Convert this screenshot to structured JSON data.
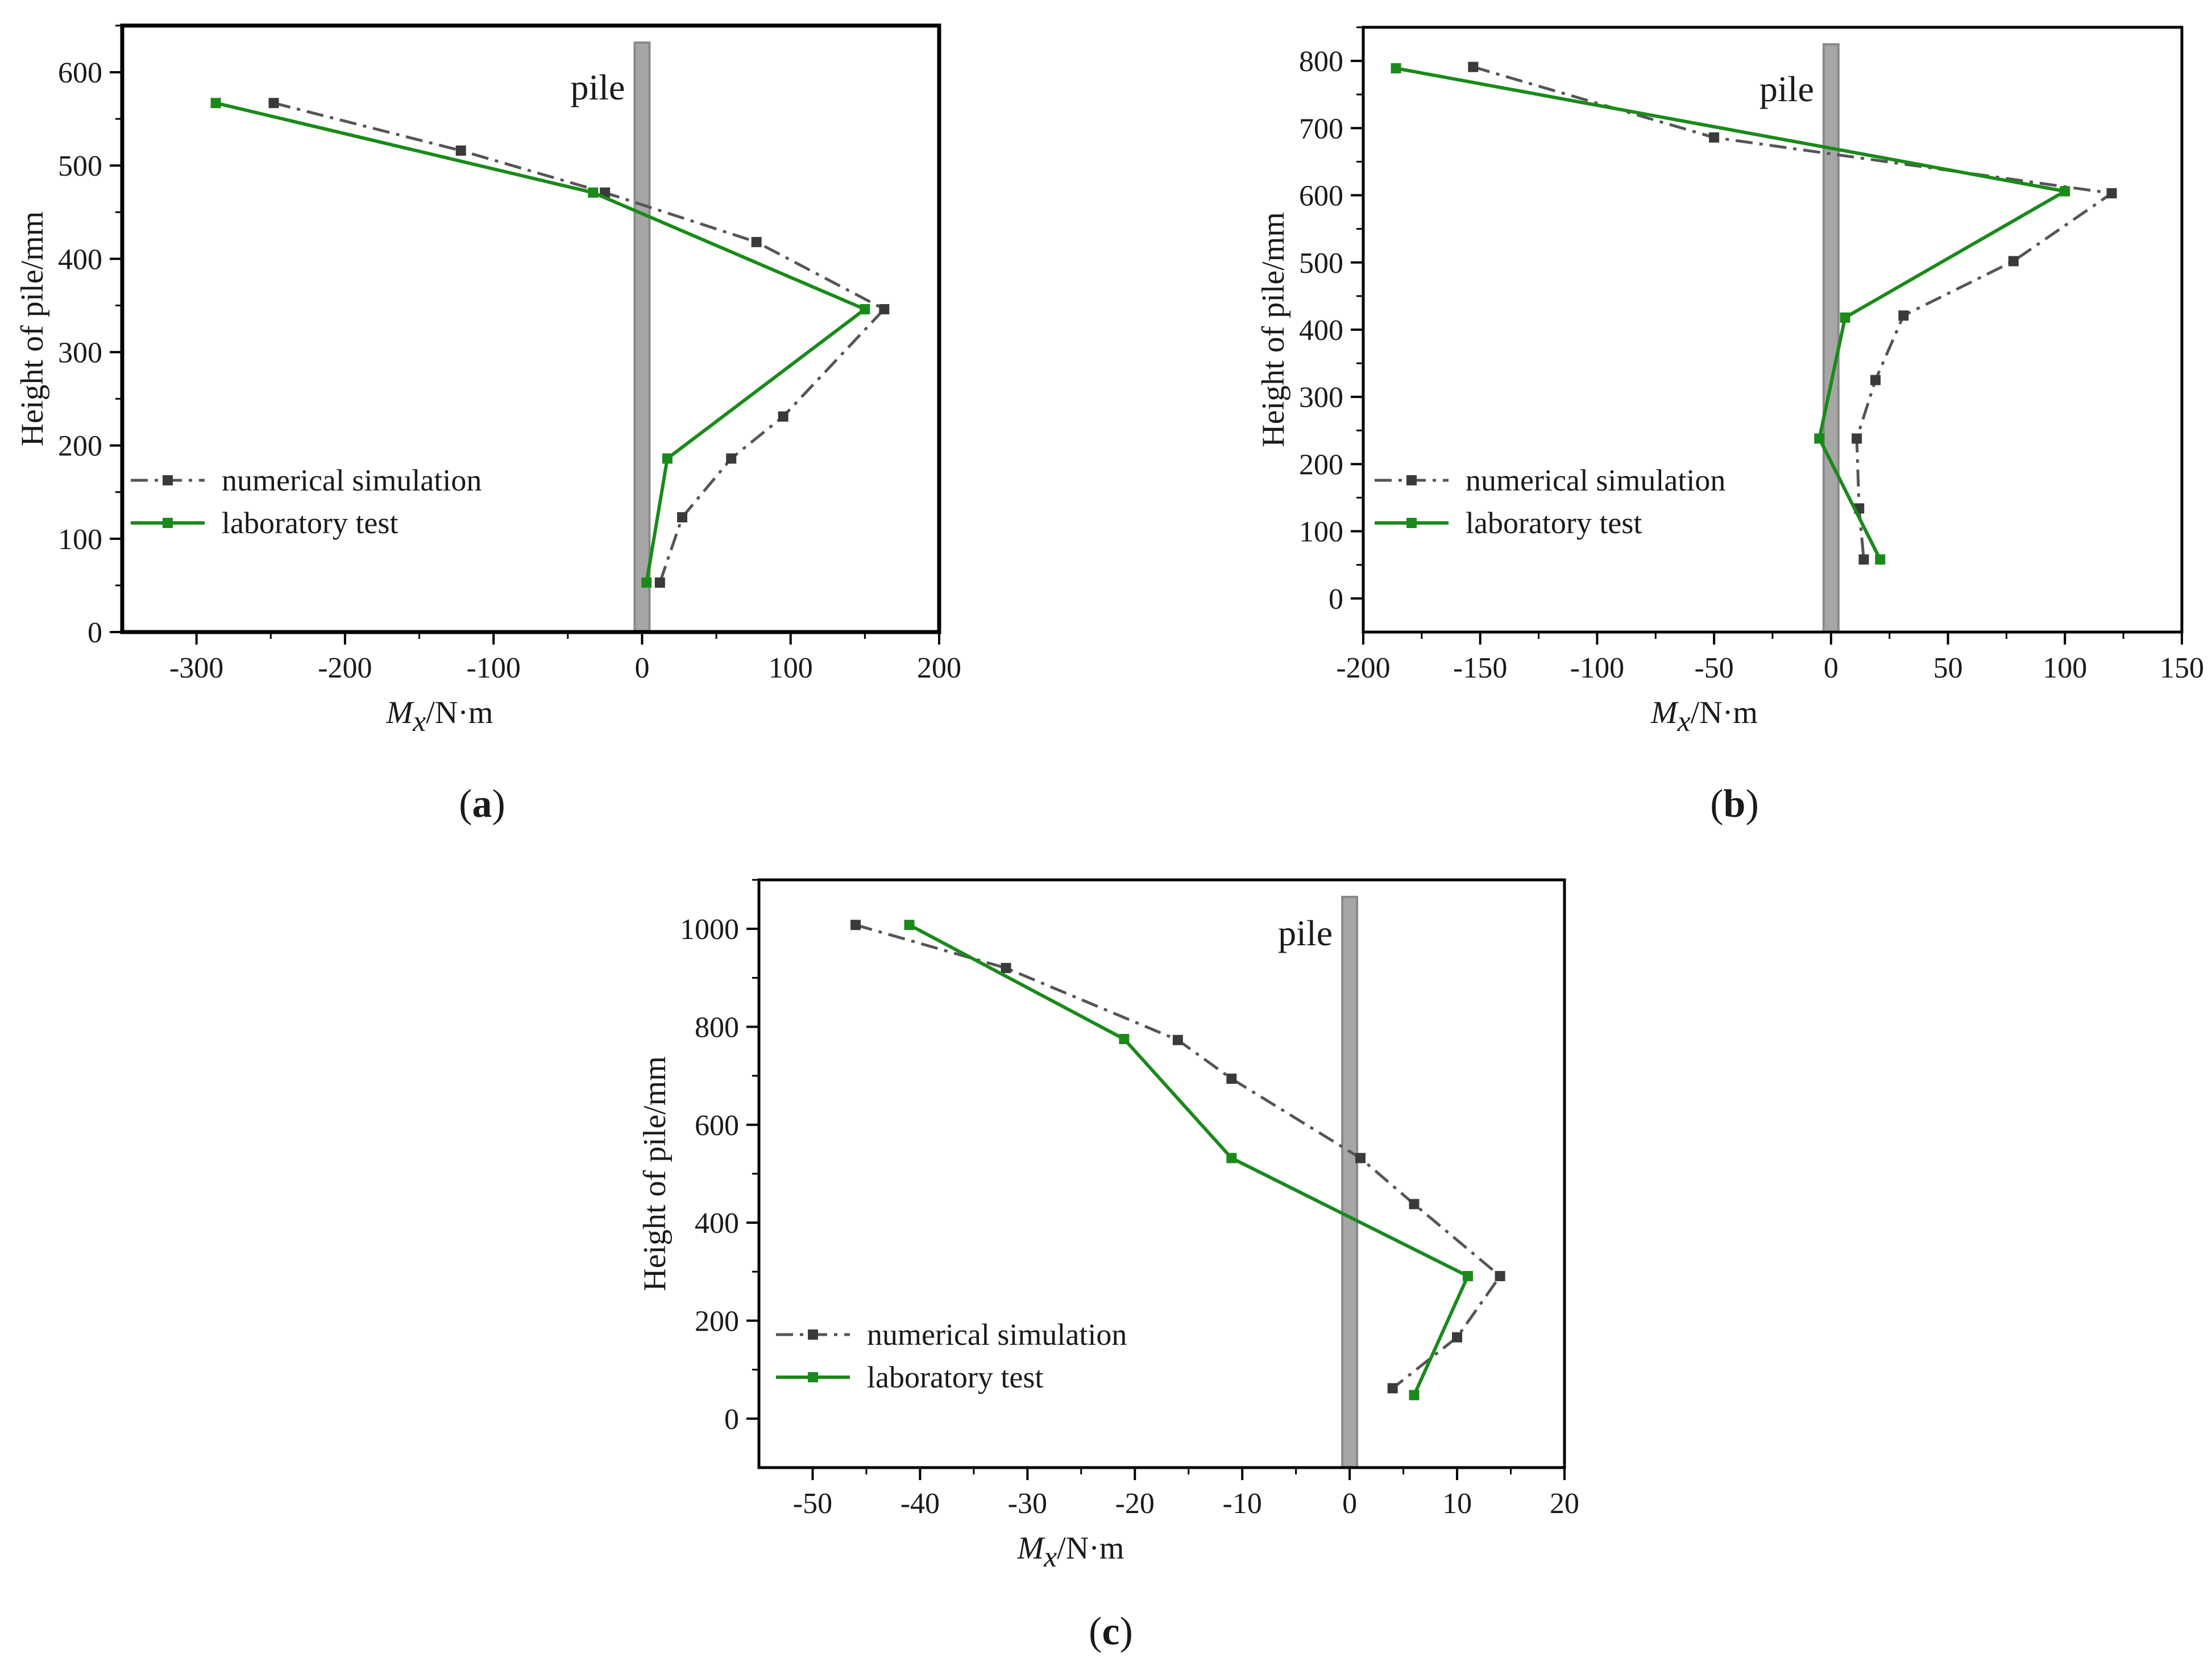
{
  "chart_data": [
    {
      "type": "line",
      "caption": "(a)",
      "caption_letter": "a",
      "xlabel": "Mx/N·m",
      "xlabel_var": "M",
      "xlabel_sub": "x",
      "xlabel_unit": "/N·m",
      "ylabel": "Height of pile/mm",
      "xlim": [
        -350,
        200
      ],
      "ylim": [
        0,
        650
      ],
      "xticks": [
        -300,
        -200,
        -100,
        0,
        100,
        200
      ],
      "yticks": [
        0,
        100,
        200,
        300,
        400,
        500,
        600
      ],
      "pile_label": "pile",
      "pile_x": 0,
      "series": [
        {
          "name": "numerical simulation",
          "style": "dashdot",
          "color": "#555555",
          "x": [
            -248,
            -122,
            -25,
            77,
            163,
            95,
            60,
            27,
            12
          ],
          "y": [
            567,
            516,
            471,
            418,
            346,
            231,
            186,
            123,
            53
          ]
        },
        {
          "name": "laboratory test",
          "style": "solid",
          "color": "#1a8a1a",
          "x": [
            -287,
            -33,
            150,
            17,
            3
          ],
          "y": [
            567,
            471,
            346,
            186,
            53
          ]
        }
      ]
    },
    {
      "type": "line",
      "caption": "(b)",
      "caption_letter": "b",
      "xlabel": "Mx/N·m",
      "xlabel_var": "M",
      "xlabel_sub": "x",
      "xlabel_unit": "/N·m",
      "ylabel": "Height of pile/mm",
      "xlim": [
        -200,
        150
      ],
      "ylim": [
        -50,
        850
      ],
      "xticks": [
        -200,
        -150,
        -100,
        -50,
        0,
        50,
        100,
        150
      ],
      "yticks": [
        0,
        100,
        200,
        300,
        400,
        500,
        600,
        700,
        800
      ],
      "pile_label": "pile",
      "pile_x": 0,
      "series": [
        {
          "name": "numerical simulation",
          "style": "dashdot",
          "color": "#555555",
          "x": [
            -153,
            -50,
            120,
            78,
            31,
            19,
            11,
            12,
            14
          ],
          "y": [
            791,
            686,
            603,
            502,
            421,
            325,
            238,
            134,
            58
          ]
        },
        {
          "name": "laboratory test",
          "style": "solid",
          "color": "#1a8a1a",
          "x": [
            -186,
            100,
            6,
            -5,
            21
          ],
          "y": [
            789,
            606,
            418,
            238,
            58
          ]
        }
      ]
    },
    {
      "type": "line",
      "caption": "(c)",
      "caption_letter": "c",
      "xlabel": "Mx/N·m",
      "xlabel_var": "M",
      "xlabel_sub": "x",
      "xlabel_unit": "/N·m",
      "ylabel": "Height of pile/mm",
      "xlim": [
        -55,
        20
      ],
      "ylim": [
        -100,
        1100
      ],
      "xticks": [
        -50,
        -40,
        -30,
        -20,
        -10,
        0,
        10,
        20
      ],
      "yticks": [
        0,
        200,
        400,
        600,
        800,
        1000
      ],
      "pile_label": "pile",
      "pile_x": 0,
      "series": [
        {
          "name": "numerical simulation",
          "style": "dashdot",
          "color": "#555555",
          "x": [
            -46,
            -32,
            -16,
            -11,
            1,
            6,
            14,
            10,
            4
          ],
          "y": [
            1008,
            920,
            773,
            694,
            532,
            438,
            291,
            166,
            62
          ]
        },
        {
          "name": "laboratory test",
          "style": "solid",
          "color": "#1a8a1a",
          "x": [
            -41,
            -21,
            -11,
            11,
            6
          ],
          "y": [
            1008,
            775,
            532,
            291,
            48
          ]
        }
      ]
    }
  ]
}
